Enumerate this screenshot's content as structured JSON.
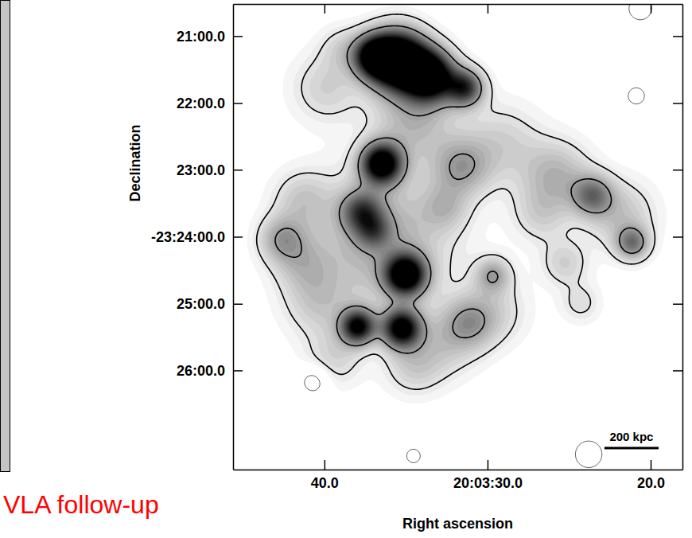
{
  "chart_data": {
    "type": "contour_image",
    "x_label": "Right ascension",
    "y_label": "Declination",
    "annotation": "VLA follow-up",
    "xlim": [
      45.6,
      18.05
    ],
    "xticks": [
      {
        "value": 40,
        "label": "40.0"
      },
      {
        "value": 30,
        "label": "20:03:30.0"
      },
      {
        "value": 20,
        "label": "20.0"
      }
    ],
    "ylim": [
      -23.458,
      -23.342
    ],
    "yticks": [
      {
        "value": -23.35,
        "label": "21:00.0"
      },
      {
        "value": -23.3667,
        "label": "22:00.0"
      },
      {
        "value": -23.3833,
        "label": "23:00.0"
      },
      {
        "value": -23.4,
        "label": "-23:24:00.0"
      },
      {
        "value": -23.4167,
        "label": "25:00.0"
      },
      {
        "value": -23.4333,
        "label": "26:00.0"
      }
    ],
    "scale_bar": {
      "label": "200 kpc",
      "length": 0.81
    },
    "image": {
      "color_range": [
        0,
        1
      ],
      "gray_levels": [
        0.04,
        0.08,
        0.12,
        0.16,
        0.2,
        0.24,
        0.28,
        0.32,
        0.36,
        0.4,
        0.44,
        0.48,
        0.52,
        0.56,
        0.6,
        0.64,
        0.68,
        0.72,
        0.76,
        0.8,
        0.84,
        0.88,
        0.92,
        0.96,
        1.0
      ],
      "contour_levels": [
        -0.12,
        0.12,
        0.4
      ],
      "components": [
        {
          "x": 35.51,
          "y": -23.356,
          "peak": 1.6,
          "size": 0.3
        },
        {
          "x": 33.56,
          "y": -23.3599,
          "peak": 1.3,
          "size": 0.26
        },
        {
          "x": 31.37,
          "y": -23.3629,
          "peak": 0.8,
          "size": 0.19
        },
        {
          "x": 36.98,
          "y": -23.355,
          "peak": 0.9,
          "size": 0.21
        },
        {
          "x": 36.49,
          "y": -23.3818,
          "peak": 1.2,
          "size": 0.21
        },
        {
          "x": 37.71,
          "y": -23.3937,
          "peak": 0.6,
          "size": 0.21
        },
        {
          "x": 36.98,
          "y": -23.3986,
          "peak": 0.4,
          "size": 0.18
        },
        {
          "x": 35.02,
          "y": -23.4095,
          "peak": 1.2,
          "size": 0.21
        },
        {
          "x": 37.95,
          "y": -23.4224,
          "peak": 1.0,
          "size": 0.18
        },
        {
          "x": 35.27,
          "y": -23.4228,
          "peak": 1.1,
          "size": 0.2
        },
        {
          "x": 36.49,
          "y": -23.4006,
          "peak": 0.35,
          "size": 0.71
        },
        {
          "x": 42.59,
          "y": -23.4006,
          "peak": 0.35,
          "size": 0.24
        },
        {
          "x": 41.37,
          "y": -23.3907,
          "peak": 0.2,
          "size": 0.3
        },
        {
          "x": 39.9,
          "y": -23.3629,
          "peak": 0.2,
          "size": 0.36
        },
        {
          "x": 38.93,
          "y": -23.353,
          "peak": 0.15,
          "size": 0.24
        },
        {
          "x": 34.54,
          "y": -23.3708,
          "peak": 0.3,
          "size": 0.42
        },
        {
          "x": 31.61,
          "y": -23.3827,
          "peak": 0.35,
          "size": 0.3
        },
        {
          "x": 29.17,
          "y": -23.3768,
          "peak": 0.2,
          "size": 0.42
        },
        {
          "x": 25.76,
          "y": -23.3847,
          "peak": 0.3,
          "size": 0.36
        },
        {
          "x": 23.56,
          "y": -23.3897,
          "peak": 0.5,
          "size": 0.21
        },
        {
          "x": 21.12,
          "y": -23.4016,
          "peak": 0.5,
          "size": 0.17
        },
        {
          "x": 21.85,
          "y": -23.3946,
          "peak": 0.25,
          "size": 0.36
        },
        {
          "x": 26.73,
          "y": -23.3946,
          "peak": 0.18,
          "size": 0.3
        },
        {
          "x": 32.59,
          "y": -23.3927,
          "peak": 0.2,
          "size": 0.24
        },
        {
          "x": 29.66,
          "y": -23.4095,
          "peak": 0.35,
          "size": 0.18
        },
        {
          "x": 31.12,
          "y": -23.4214,
          "peak": 0.3,
          "size": 0.26
        },
        {
          "x": 29.66,
          "y": -23.4185,
          "peak": 0.18,
          "size": 0.36
        },
        {
          "x": 32.59,
          "y": -23.4264,
          "peak": 0.2,
          "size": 0.36
        },
        {
          "x": 34.54,
          "y": -23.4323,
          "peak": 0.2,
          "size": 0.3
        },
        {
          "x": 41.37,
          "y": -23.4066,
          "peak": 0.2,
          "size": 0.3
        },
        {
          "x": 40.39,
          "y": -23.4165,
          "peak": 0.2,
          "size": 0.36
        },
        {
          "x": 39.41,
          "y": -23.4304,
          "peak": 0.18,
          "size": 0.3
        },
        {
          "x": 25.27,
          "y": -23.4066,
          "peak": 0.2,
          "size": 0.24
        },
        {
          "x": 24.29,
          "y": -23.4165,
          "peak": 0.15,
          "size": 0.21
        },
        {
          "x": 20.63,
          "y": -23.3431,
          "peak": -0.25,
          "size": 0.14
        },
        {
          "x": 20.88,
          "y": -23.3649,
          "peak": -0.2,
          "size": 0.12
        },
        {
          "x": 40.63,
          "y": -23.4359,
          "peak": -0.22,
          "size": 0.17
        },
        {
          "x": 23.8,
          "y": -23.4542,
          "peak": -0.22,
          "size": 0.18
        },
        {
          "x": 34.54,
          "y": -23.4546,
          "peak": -0.2,
          "size": 0.1
        }
      ]
    }
  }
}
